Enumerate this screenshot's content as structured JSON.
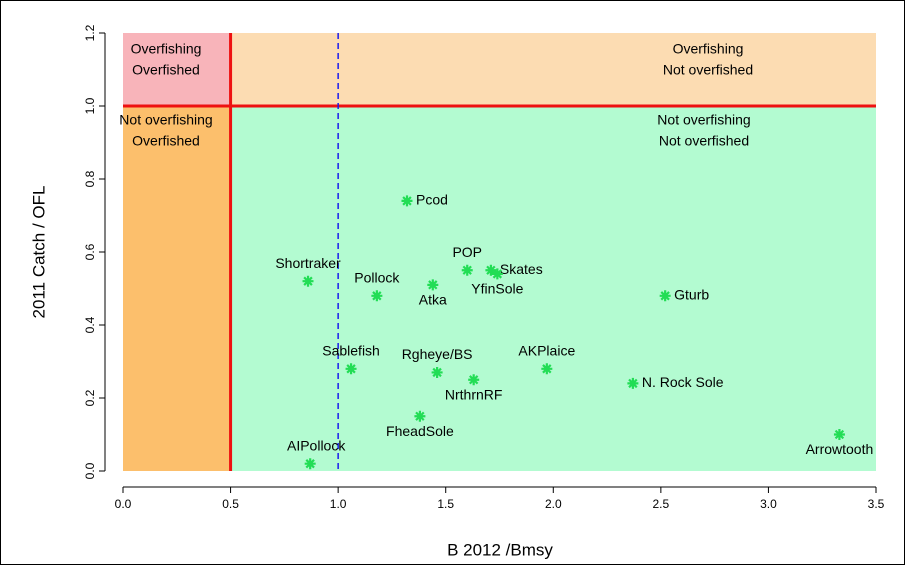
{
  "chart_data": {
    "type": "scatter",
    "xlabel": "B 2012 /Bmsy",
    "ylabel": "2011 Catch / OFL",
    "xlim": [
      0,
      3.5
    ],
    "ylim": [
      0,
      1.2
    ],
    "xticks": [
      {
        "value": 0,
        "label": "0.0"
      },
      0.5,
      {
        "value": 1,
        "label": "1.0"
      },
      1.5,
      {
        "value": 2,
        "label": "2.0"
      },
      2.5,
      {
        "value": 3,
        "label": "3.0"
      },
      3.5
    ],
    "yticks": [
      {
        "value": 0,
        "label": "0.0"
      },
      0.2,
      0.4,
      0.6,
      0.8,
      {
        "value": 1,
        "label": "1.0"
      },
      1.2
    ],
    "zones": [
      {
        "x": [
          0,
          0.5
        ],
        "y": [
          1,
          1.2
        ],
        "fill": "#f8b4ba",
        "lines": [
          {
            "text": "Overfishing",
            "color": "#ee1111"
          },
          {
            "text": "Overfished",
            "color": "#ee1111"
          }
        ]
      },
      {
        "x": [
          0.5,
          3.5
        ],
        "y": [
          1,
          1.2
        ],
        "fill": "#fcdcb2",
        "lines": [
          {
            "text": "Overfishing",
            "color": "#ee1111"
          },
          {
            "text": "Not overfished",
            "color": "#1a7a1a"
          }
        ]
      },
      {
        "x": [
          0,
          0.5
        ],
        "y": [
          0,
          1
        ],
        "fill": "#fcbf6c",
        "lines": [
          {
            "text": "Not overfishing",
            "color": "#1a7a1a"
          },
          {
            "text": "Overfished",
            "color": "#ee1111"
          }
        ]
      },
      {
        "x": [
          0.5,
          3.5
        ],
        "y": [
          0,
          1
        ],
        "fill": "#b3fbd1",
        "lines": [
          {
            "text": "Not overfishing",
            "color": "#1a7a1a"
          },
          {
            "text": "Not overfished",
            "color": "#1a7a1a"
          }
        ]
      }
    ],
    "hlines": [
      {
        "value": 1,
        "color": "#ee1111"
      }
    ],
    "vlines": [
      {
        "value": 0.5,
        "color": "#ee1111",
        "dashed": false
      },
      {
        "value": 1,
        "color": "#1a1aee",
        "dashed": true
      }
    ],
    "color": "#22dd55",
    "labels": [
      "Pcod",
      "Shortraker",
      "Pollock",
      "Atka",
      "POP",
      "Skates",
      "YfinSole",
      "Gturb",
      "Sablefish",
      "Rgheye/BS",
      "NrthrnRF",
      "AKPlaice",
      "N. Rock Sole",
      "FheadSole",
      "AIPollock",
      "Arrowtooth"
    ],
    "x": [
      1.32,
      0.86,
      1.18,
      1.44,
      1.6,
      1.71,
      1.74,
      2.52,
      1.06,
      1.46,
      1.63,
      1.97,
      2.37,
      1.38,
      0.87,
      3.33
    ],
    "y": [
      0.74,
      0.52,
      0.48,
      0.51,
      0.55,
      0.55,
      0.54,
      0.48,
      0.28,
      0.27,
      0.25,
      0.28,
      0.24,
      0.15,
      0.02,
      0.1
    ]
  }
}
